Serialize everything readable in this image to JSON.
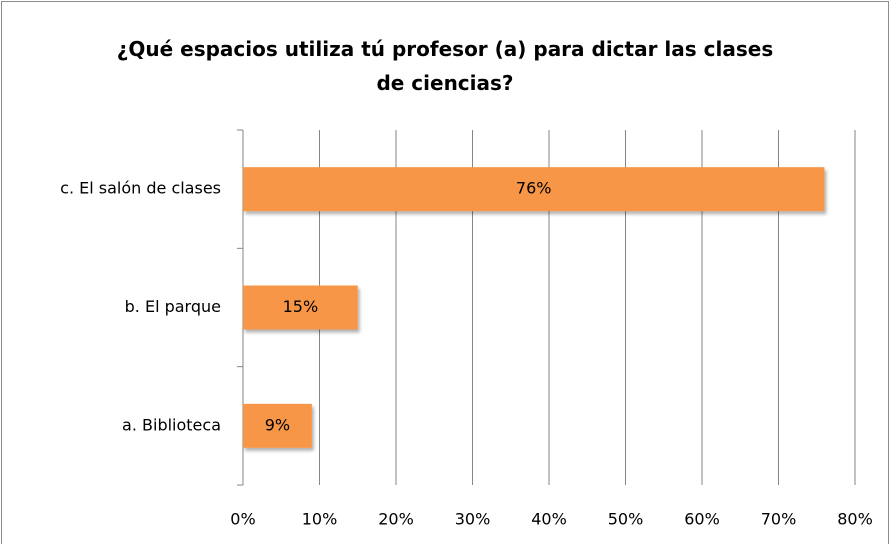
{
  "chart_data": {
    "type": "bar",
    "orientation": "horizontal",
    "title": "¿Qué espacios utiliza tú profesor (a) para dictar las clases de ciencias?",
    "categories": [
      "a. Biblioteca",
      "b. El parque",
      "c. El salón de clases"
    ],
    "values": [
      9,
      15,
      76
    ],
    "value_labels": [
      "9%",
      "15%",
      "76%"
    ],
    "color": "#f79646",
    "xlim": [
      0,
      80
    ],
    "xticks": [
      {
        "value": 0,
        "label": "0%"
      },
      {
        "value": 10,
        "label": "10%"
      },
      {
        "value": 20,
        "label": "20%"
      },
      {
        "value": 30,
        "label": "30%"
      },
      {
        "value": 40,
        "label": "40%"
      },
      {
        "value": 50,
        "label": "50%"
      },
      {
        "value": 60,
        "label": "60%"
      },
      {
        "value": 70,
        "label": "70%"
      },
      {
        "value": 80,
        "label": "80%"
      }
    ],
    "grid": true
  }
}
